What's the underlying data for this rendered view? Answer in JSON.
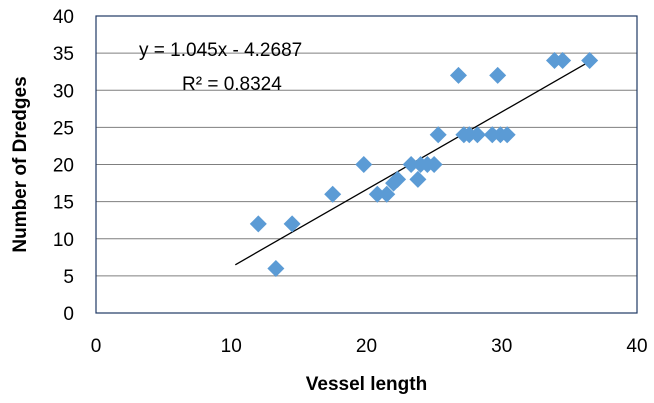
{
  "chart_data": {
    "type": "scatter",
    "title": "",
    "xlabel": "Vessel length",
    "ylabel": "Number of Dredges",
    "xlim": [
      0,
      40
    ],
    "ylim": [
      0,
      40
    ],
    "xticks": [
      "0",
      "10",
      "20",
      "30",
      "40"
    ],
    "yticks": [
      "0",
      "5",
      "10",
      "15",
      "20",
      "25",
      "30",
      "35",
      "40"
    ],
    "grid": true,
    "marker": "diamond",
    "marker_color": "#5b9bd5",
    "series": [
      {
        "points": [
          [
            12.0,
            12
          ],
          [
            13.3,
            6
          ],
          [
            14.5,
            12
          ],
          [
            17.5,
            16
          ],
          [
            19.8,
            20
          ],
          [
            20.8,
            16
          ],
          [
            21.5,
            16
          ],
          [
            22.0,
            17.5
          ],
          [
            22.3,
            18
          ],
          [
            23.3,
            20
          ],
          [
            23.8,
            18
          ],
          [
            24.0,
            20
          ],
          [
            24.5,
            20
          ],
          [
            25.0,
            20
          ],
          [
            25.3,
            24
          ],
          [
            26.8,
            32
          ],
          [
            27.2,
            24
          ],
          [
            27.6,
            24
          ],
          [
            28.2,
            24
          ],
          [
            29.3,
            24
          ],
          [
            29.7,
            32
          ],
          [
            29.9,
            24
          ],
          [
            30.4,
            24
          ],
          [
            33.9,
            34
          ],
          [
            34.5,
            34
          ],
          [
            36.5,
            34
          ]
        ]
      }
    ],
    "trendline": {
      "slope": 1.045,
      "intercept": -4.2687,
      "x_range": [
        10.3,
        36.5
      ],
      "color": "#000000",
      "equation_label": "y = 1.045x - 4.2687",
      "r2_label": "R² = 0.8324"
    },
    "colors": {
      "grid": "#7f7f7f",
      "frame": "#1f3864"
    }
  }
}
